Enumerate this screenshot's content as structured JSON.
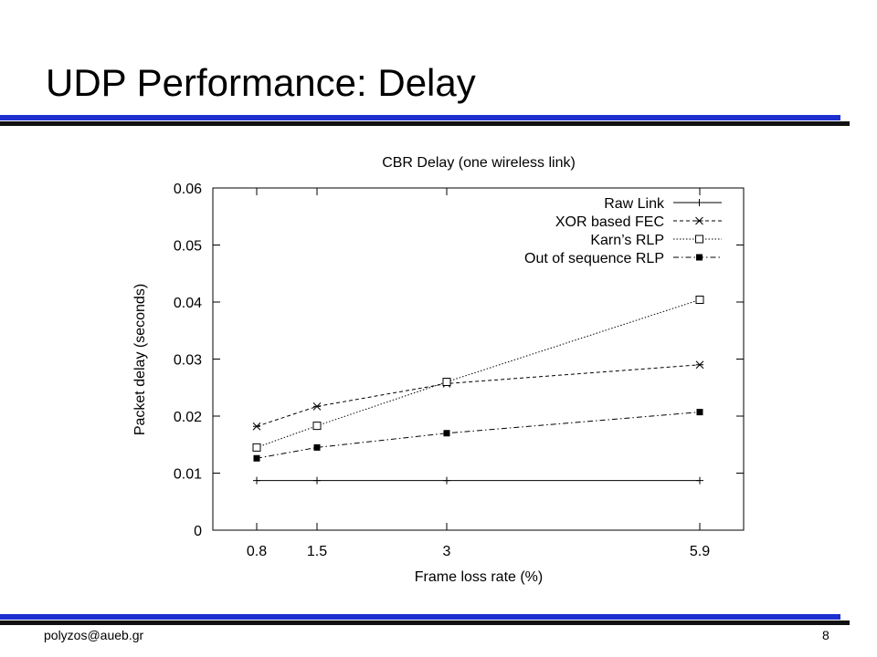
{
  "slide": {
    "title": "UDP Performance: Delay",
    "footer_email": "polyzos@aueb.gr",
    "page_number": "8",
    "rule_color": "#1e2fd0"
  },
  "chart_data": {
    "type": "line",
    "title": "CBR Delay (one wireless link)",
    "xlabel": "Frame loss rate (%)",
    "ylabel": "Packet delay (seconds)",
    "x": [
      0.8,
      1.5,
      3,
      5.9
    ],
    "x_tick_labels": [
      "0.8",
      "1.5",
      "3",
      "5.9"
    ],
    "ylim": [
      0,
      0.06
    ],
    "y_ticks": [
      0,
      0.01,
      0.02,
      0.03,
      0.04,
      0.05,
      0.06
    ],
    "y_tick_labels": [
      "0",
      "0.01",
      "0.02",
      "0.03",
      "0.04",
      "0.05",
      "0.06"
    ],
    "grid": false,
    "legend_position": "top-right",
    "series": [
      {
        "name": "Raw Link",
        "marker": "plus",
        "values": [
          0.0087,
          0.0087,
          0.0087,
          0.0087
        ]
      },
      {
        "name": "XOR based FEC",
        "marker": "asterisk",
        "values": [
          0.0182,
          0.0217,
          0.0257,
          0.029
        ]
      },
      {
        "name": "Karn’s RLP",
        "marker": "open-square",
        "values": [
          0.0145,
          0.0183,
          0.026,
          0.0404
        ]
      },
      {
        "name": "Out of sequence RLP",
        "marker": "filled-square",
        "values": [
          0.0126,
          0.0145,
          0.017,
          0.0207
        ]
      }
    ]
  }
}
